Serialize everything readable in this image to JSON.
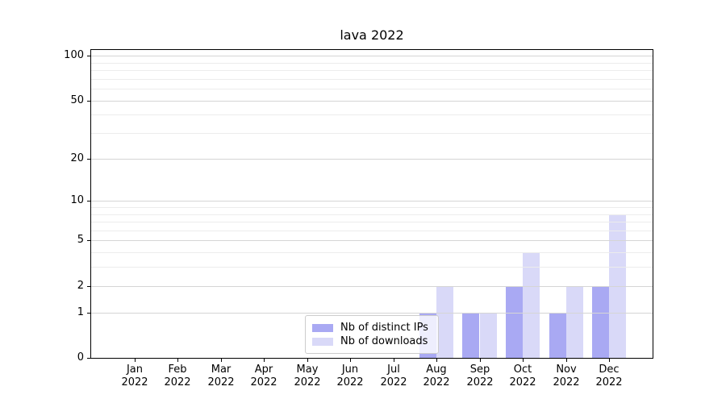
{
  "chart_data": {
    "type": "bar",
    "title": "lava 2022",
    "categories": [
      "Jan",
      "Feb",
      "Mar",
      "Apr",
      "May",
      "Jun",
      "Jul",
      "Aug",
      "Sep",
      "Oct",
      "Nov",
      "Dec"
    ],
    "category_sublabel": "2022",
    "series": [
      {
        "name": "Nb of distinct IPs",
        "color": "#a9a9f3",
        "values": [
          0,
          0,
          0,
          0,
          0,
          0,
          0,
          1,
          1,
          2,
          1,
          2
        ]
      },
      {
        "name": "Nb of downloads",
        "color": "#d9d9f8",
        "values": [
          0,
          0,
          0,
          0,
          0,
          0,
          0,
          2,
          1,
          4,
          2,
          8
        ]
      }
    ],
    "y_axis": {
      "scale": "log10(value+1)",
      "major_ticks": [
        0,
        1,
        2,
        5,
        10,
        20,
        50,
        100
      ],
      "minor_gridlines": [
        3,
        4,
        6,
        7,
        8,
        9,
        30,
        40,
        60,
        70,
        80,
        90
      ],
      "range": [
        0,
        110
      ]
    },
    "x_axis": {
      "label_format": "month over year"
    },
    "legend": {
      "position": "inside-bottom-center"
    },
    "grid": {
      "major": true,
      "minor": true,
      "drawn_above_bars": true
    },
    "style": {
      "major_grid_color": "#d5d5d5",
      "minor_grid_color": "#ececec",
      "spine_color": "#000000",
      "text_color": "#000000",
      "background_color": "#ffffff"
    }
  }
}
